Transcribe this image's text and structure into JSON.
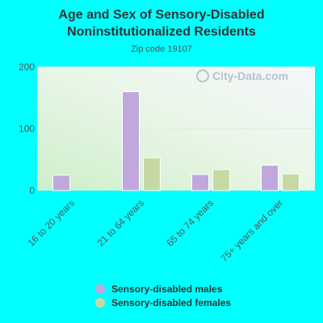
{
  "title_line1": "Age and Sex of Sensory-Disabled",
  "title_line2": "Noninstitutionalized Residents",
  "subtitle": "Zip code 19107",
  "watermark": "City-Data.com",
  "legend": [
    {
      "label": "Sensory-disabled males",
      "color": "#C0A8DC"
    },
    {
      "label": "Sensory-disabled females",
      "color": "#C6D9A4"
    }
  ],
  "chart_data": {
    "type": "bar",
    "title": "Age and Sex of Sensory-Disabled Noninstitutionalized Residents",
    "subtitle": "Zip code 19107",
    "categories": [
      "16 to 20 years",
      "21 to 64 years",
      "65 to 74 years",
      "75+ years and over"
    ],
    "series": [
      {
        "name": "Sensory-disabled males",
        "values": [
          25,
          160,
          26,
          41
        ],
        "color": "#C0A8DC"
      },
      {
        "name": "Sensory-disabled females",
        "values": [
          0,
          53,
          34,
          27
        ],
        "color": "#C6D9A4"
      }
    ],
    "ylim": [
      0,
      200
    ],
    "yticks": [
      0,
      100,
      200
    ],
    "grid": true,
    "legend_position": "bottom"
  }
}
